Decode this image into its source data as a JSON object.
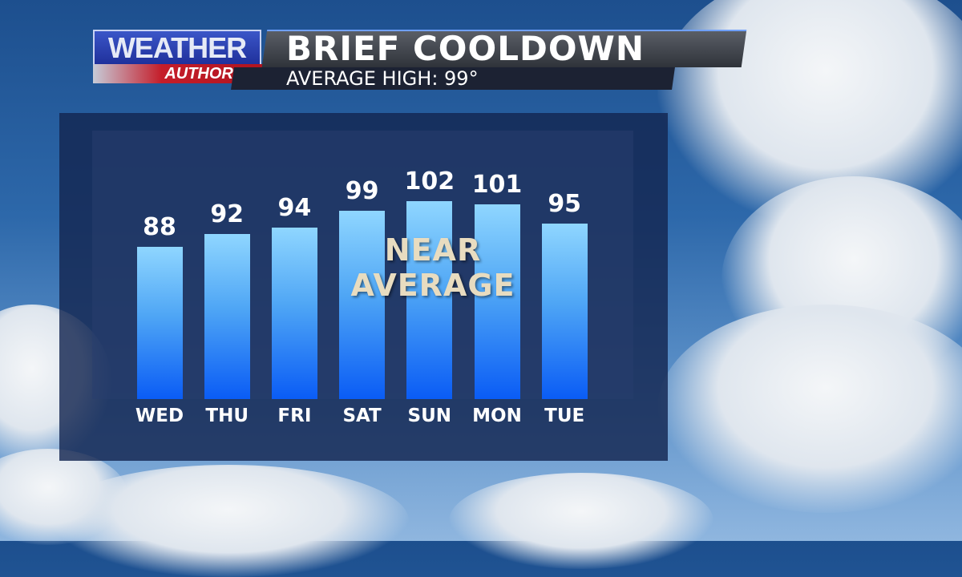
{
  "header": {
    "logo_top": "WEATHER",
    "logo_bottom": "AUTHORITY",
    "title": "BRIEF COOLDOWN",
    "subtitle": "AVERAGE HIGH: 99°"
  },
  "overlay": {
    "line1": "NEAR",
    "line2": "AVERAGE"
  },
  "colors": {
    "bar_top": "#8fd6ff",
    "bar_bottom": "#0a5cf5",
    "logo_blue": "#2b3fb5",
    "logo_red": "#c51d2a"
  },
  "chart_data": {
    "type": "bar",
    "title": "BRIEF COOLDOWN",
    "categories": [
      "WED",
      "THU",
      "FRI",
      "SAT",
      "SUN",
      "MON",
      "TUE"
    ],
    "values": [
      88,
      92,
      94,
      99,
      102,
      101,
      95
    ],
    "value_labels": [
      "88",
      "92",
      "94",
      "99",
      "102",
      "101",
      "95"
    ],
    "xlabel": "",
    "ylabel": "",
    "grid": false
  }
}
